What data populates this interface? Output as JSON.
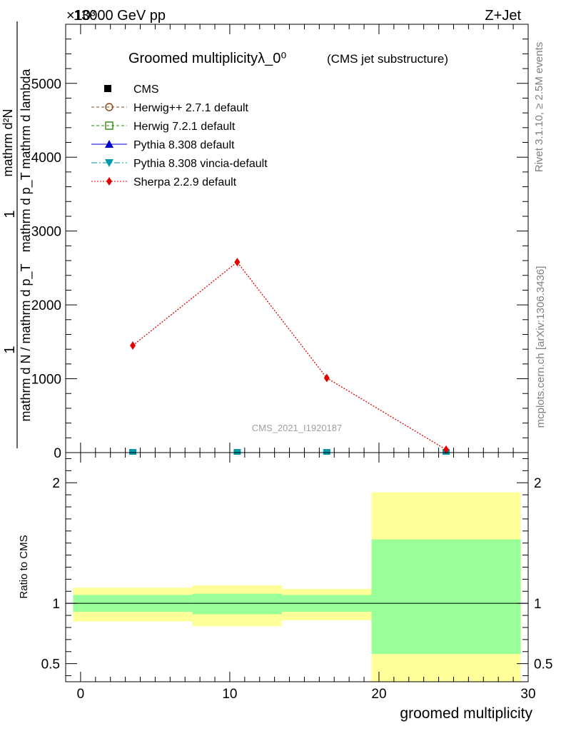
{
  "header": {
    "left": "13000 GeV pp",
    "right": "Z+Jet",
    "exponent": "×10³"
  },
  "title": {
    "main": "Groomed multiplicityλ_0⁰",
    "sub": "(CMS jet substructure)"
  },
  "ylabel": {
    "numerator": "mathrm d²N",
    "denominator": "mathrm d p_T mathrm d lambda",
    "prefix_num": "1",
    "prefix_den": "mathrm d N / mathrm d p_T",
    "mid": "mathrm d p_T mathrm d lambda"
  },
  "side_labels": {
    "rivet": "Rivet 3.1.10, ≥ 2.5M events",
    "mcplots": "mcplots.cern.ch [arXiv:1306.3436]"
  },
  "watermark": "CMS_2021_I1920187",
  "ratio_ylabel": "Ratio to CMS",
  "xlabel": "groomed multiplicity",
  "colors": {
    "cms": "#000000",
    "herwigpp": "#8b4513",
    "herwig7": "#2e8b00",
    "pythia": "#0000cd",
    "vincia": "#0099aa",
    "sherpa": "#e00000",
    "band_green": "#99ff99",
    "band_yellow": "#ffff99"
  },
  "chart_data": {
    "type": "line",
    "xlim": [
      -1,
      30
    ],
    "main_ylim": [
      0,
      5800
    ],
    "main_yticks": [
      {
        "v": 0,
        "label": "0"
      },
      {
        "v": 1000,
        "label": "1000"
      },
      {
        "v": 2000,
        "label": "2000"
      },
      {
        "v": 3000,
        "label": "3000"
      },
      {
        "v": 4000,
        "label": "4000"
      },
      {
        "v": 5000,
        "label": "5000"
      }
    ],
    "ratio_ylim": [
      0.35,
      2.25
    ],
    "ratio_yticks": [
      {
        "v": 0.5,
        "label": "0.5"
      },
      {
        "v": 1,
        "label": "1"
      },
      {
        "v": 2,
        "label": "2"
      }
    ],
    "xticks": [
      {
        "v": 0,
        "label": "0"
      },
      {
        "v": 10,
        "label": "10"
      },
      {
        "v": 20,
        "label": "20"
      },
      {
        "v": 30,
        "label": "30"
      }
    ],
    "series": [
      {
        "name": "CMS",
        "x": [
          3.5,
          10.5,
          16.5,
          24.5
        ],
        "y": [
          0,
          0,
          0,
          0
        ]
      },
      {
        "name": "Herwig++ 2.7.1 default",
        "x": [
          3.5,
          10.5,
          16.5,
          24.5
        ],
        "y": [
          0,
          0,
          0,
          0
        ]
      },
      {
        "name": "Herwig 7.2.1 default",
        "x": [
          3.5,
          10.5,
          16.5,
          24.5
        ],
        "y": [
          0,
          0,
          0,
          0
        ]
      },
      {
        "name": "Pythia 8.308 default",
        "x": [
          3.5,
          10.5,
          16.5,
          24.5
        ],
        "y": [
          0,
          0,
          0,
          0
        ]
      },
      {
        "name": "Pythia 8.308 vincia-default",
        "x": [
          3.5,
          10.5,
          16.5,
          24.5
        ],
        "y": [
          0,
          0,
          0,
          0
        ]
      },
      {
        "name": "Sherpa 2.2.9 default",
        "x": [
          3.5,
          10.5,
          16.5,
          24.5
        ],
        "y": [
          1450,
          2580,
          1010,
          40
        ]
      }
    ],
    "ratio_bands": [
      {
        "x0": -0.5,
        "x1": 7.5,
        "green": [
          0.93,
          1.07
        ],
        "yellow": [
          0.85,
          1.13
        ]
      },
      {
        "x0": 7.5,
        "x1": 13.5,
        "green": [
          0.91,
          1.08
        ],
        "yellow": [
          0.81,
          1.15
        ]
      },
      {
        "x0": 13.5,
        "x1": 19.5,
        "green": [
          0.93,
          1.07
        ],
        "yellow": [
          0.86,
          1.12
        ]
      },
      {
        "x0": 19.5,
        "x1": 29.5,
        "green": [
          0.58,
          1.53
        ],
        "yellow": [
          0.35,
          1.92
        ]
      }
    ]
  }
}
